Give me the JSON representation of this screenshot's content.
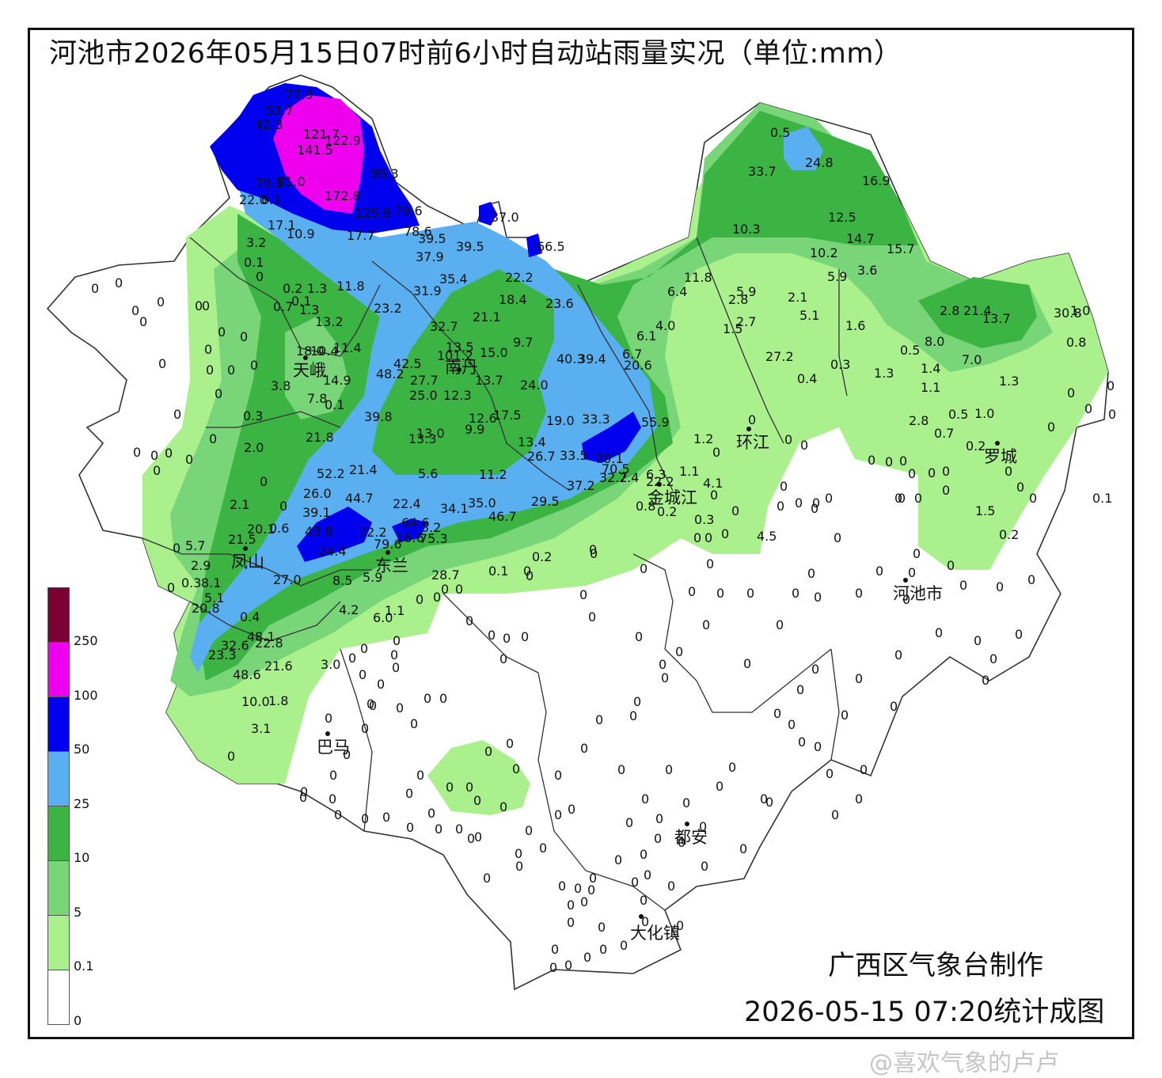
{
  "title": "河池市2026年05月15日07时前6小时自动站雨量实况（单位:mm）",
  "credit": "广西区气象台制作",
  "stamp": "2026-05-15 07:20统计成图",
  "watermark": "@喜欢气象的卢卢",
  "legend": {
    "colors": [
      "#7a0033",
      "#ee00ee",
      "#0000ee",
      "#5aaff0",
      "#3cb444",
      "#78d678",
      "#aaf08c",
      "#ffffff"
    ],
    "labels": [
      "250",
      "100",
      "50",
      "25",
      "10",
      "5",
      "0.1",
      "0"
    ]
  },
  "cities": [
    {
      "name": "天峨"
    },
    {
      "name": "南丹"
    },
    {
      "name": "环江"
    },
    {
      "name": "罗城"
    },
    {
      "name": "金城江"
    },
    {
      "name": "凤山"
    },
    {
      "name": "东兰"
    },
    {
      "name": "巴马"
    },
    {
      "name": "河池市"
    },
    {
      "name": "都安"
    },
    {
      "name": "大化镇"
    }
  ],
  "station_values": [
    "77.9",
    "53.7",
    "42.3",
    "121.7",
    "122.9",
    "141.5",
    "99.3",
    "79.8",
    "81.0",
    "22.0",
    "0.1",
    "172.8",
    "125.8",
    "79.6",
    "17.1",
    "10.9",
    "17.7",
    "78.6",
    "39.5",
    "39.5",
    "37.0",
    "66.5",
    "3.2",
    "37.9",
    "0.1",
    "35.4",
    "22.2",
    "0",
    "31.9",
    "18.4",
    "23.6",
    "11.8",
    "0.2",
    "1.3",
    "0.7",
    "0.1",
    "23.2",
    "21.1",
    "1.3",
    "13.2",
    "32.7",
    "9.7",
    "18.0",
    "10.4",
    "11.4",
    "13.5",
    "101.2",
    "15.0",
    "40.3",
    "39.4",
    "42.5",
    "48.2",
    "南丹",
    "27.7",
    "13.7",
    "3.8",
    "14.9",
    "7.8",
    "25.0",
    "12.3",
    "24.0",
    "0.1",
    "39.8",
    "12.6",
    "17.5",
    "19.0",
    "33.3",
    "55.9",
    "0.3",
    "21.8",
    "13.0",
    "13.3",
    "9.9",
    "13.4",
    "2.0",
    "26.7",
    "33.5",
    "70.1",
    "52.2",
    "21.4",
    "5.6",
    "11.2",
    "70.5",
    "32.2",
    "7.4",
    "6.3",
    "22.2",
    "26.0",
    "44.7",
    "37.2",
    "0.8",
    "22.4",
    "34.1",
    "35.0",
    "29.5",
    "0.2",
    "39.1",
    "46.7",
    "2.1",
    "20.1",
    "0.6",
    "43.8",
    "72.2",
    "64.6",
    "3.2",
    "21.5",
    "5.7",
    "2.9",
    "24.4",
    "79.6",
    "16.6",
    "75.3",
    "5.9",
    "8.5",
    "27.0",
    "28.7",
    "0.3",
    "8.1",
    "5.1",
    "20.8",
    "4.2",
    "6.0",
    "1.1",
    "0.4",
    "32.6",
    "48.1",
    "22.8",
    "23.3",
    "48.6",
    "21.6",
    "10.0",
    "1.8",
    "3.1",
    "3.0",
    "0.2",
    "0.1",
    "0.5",
    "24.8",
    "33.7",
    "16.9",
    "10.3",
    "12.5",
    "14.7",
    "15.7",
    "10.2",
    "5.9",
    "3.6",
    "11.8",
    "6.4",
    "5.9",
    "2.8",
    "2.1",
    "5.1",
    "2.7",
    "1.5",
    "1.6",
    "2.8",
    "21.4",
    "13.7",
    "30.8",
    "1.0",
    "0.8",
    "4.0",
    "6.1",
    "6.7",
    "20.6",
    "27.2",
    "0.4",
    "0.3",
    "0.5",
    "8.0",
    "7.0",
    "1.3",
    "1.4",
    "1.1",
    "1.3",
    "2.8",
    "1.0",
    "0.5",
    "0.7",
    "1.2",
    "0.2",
    "1.1",
    "4.1",
    "0.3",
    "4.5",
    "1.5",
    "0.2",
    "0.1",
    "6.0",
    "0.5",
    "0"
  ]
}
